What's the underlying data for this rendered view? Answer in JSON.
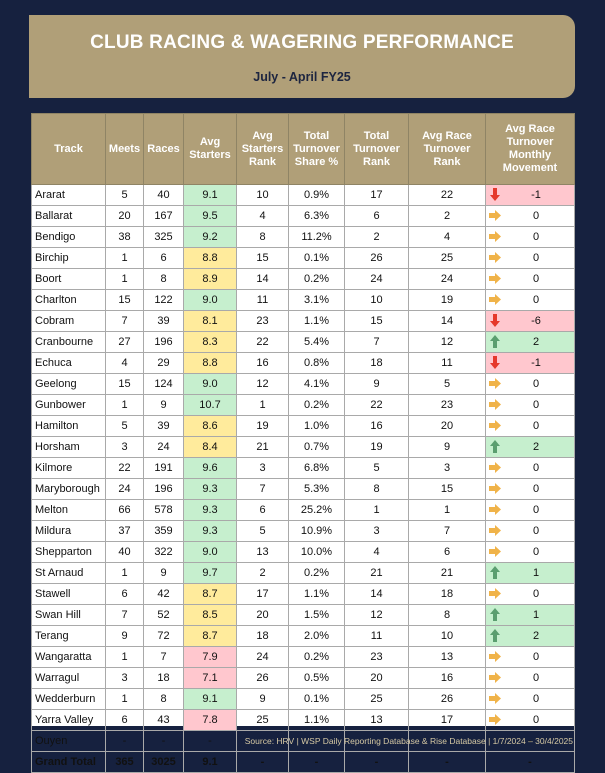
{
  "banner": {
    "title": "CLUB RACING & WAGERING PERFORMANCE",
    "subtitle": "July - April FY25"
  },
  "colors": {
    "background": "#16213f",
    "header": "#b09f78",
    "good": "#c6efce",
    "medium": "#ffeb9c",
    "poor": "#ffc7ce",
    "arrow_up": "#5a9e6f",
    "arrow_down": "#e5382b",
    "arrow_right": "#f0b349"
  },
  "table": {
    "headers": [
      "Track",
      "Meets",
      "Races",
      "Avg Starters",
      "Avg Starters Rank",
      "Total Turnover Share %",
      "Total Turnover Rank",
      "Avg Race Turnover Rank",
      "Avg Race Turnover Monthly Movement"
    ],
    "rows": [
      {
        "track": "Ararat",
        "meets": "5",
        "races": "40",
        "avg": "9.1",
        "avg_c": "g",
        "srank": "10",
        "share": "0.9%",
        "trank": "17",
        "rrank": "22",
        "dir": "down",
        "mov": "-1"
      },
      {
        "track": "Ballarat",
        "meets": "20",
        "races": "167",
        "avg": "9.5",
        "avg_c": "g",
        "srank": "4",
        "share": "6.3%",
        "trank": "6",
        "rrank": "2",
        "dir": "right",
        "mov": "0"
      },
      {
        "track": "Bendigo",
        "meets": "38",
        "races": "325",
        "avg": "9.2",
        "avg_c": "g",
        "srank": "8",
        "share": "11.2%",
        "trank": "2",
        "rrank": "4",
        "dir": "right",
        "mov": "0"
      },
      {
        "track": "Birchip",
        "meets": "1",
        "races": "6",
        "avg": "8.8",
        "avg_c": "y",
        "srank": "15",
        "share": "0.1%",
        "trank": "26",
        "rrank": "25",
        "dir": "right",
        "mov": "0"
      },
      {
        "track": "Boort",
        "meets": "1",
        "races": "8",
        "avg": "8.9",
        "avg_c": "y",
        "srank": "14",
        "share": "0.2%",
        "trank": "24",
        "rrank": "24",
        "dir": "right",
        "mov": "0"
      },
      {
        "track": "Charlton",
        "meets": "15",
        "races": "122",
        "avg": "9.0",
        "avg_c": "g",
        "srank": "11",
        "share": "3.1%",
        "trank": "10",
        "rrank": "19",
        "dir": "right",
        "mov": "0"
      },
      {
        "track": "Cobram",
        "meets": "7",
        "races": "39",
        "avg": "8.1",
        "avg_c": "y",
        "srank": "23",
        "share": "1.1%",
        "trank": "15",
        "rrank": "14",
        "dir": "down",
        "mov": "-6"
      },
      {
        "track": "Cranbourne",
        "meets": "27",
        "races": "196",
        "avg": "8.3",
        "avg_c": "y",
        "srank": "22",
        "share": "5.4%",
        "trank": "7",
        "rrank": "12",
        "dir": "up",
        "mov": "2"
      },
      {
        "track": "Echuca",
        "meets": "4",
        "races": "29",
        "avg": "8.8",
        "avg_c": "y",
        "srank": "16",
        "share": "0.8%",
        "trank": "18",
        "rrank": "11",
        "dir": "down",
        "mov": "-1"
      },
      {
        "track": "Geelong",
        "meets": "15",
        "races": "124",
        "avg": "9.0",
        "avg_c": "g",
        "srank": "12",
        "share": "4.1%",
        "trank": "9",
        "rrank": "5",
        "dir": "right",
        "mov": "0"
      },
      {
        "track": "Gunbower",
        "meets": "1",
        "races": "9",
        "avg": "10.7",
        "avg_c": "g",
        "srank": "1",
        "share": "0.2%",
        "trank": "22",
        "rrank": "23",
        "dir": "right",
        "mov": "0"
      },
      {
        "track": "Hamilton",
        "meets": "5",
        "races": "39",
        "avg": "8.6",
        "avg_c": "y",
        "srank": "19",
        "share": "1.0%",
        "trank": "16",
        "rrank": "20",
        "dir": "right",
        "mov": "0"
      },
      {
        "track": "Horsham",
        "meets": "3",
        "races": "24",
        "avg": "8.4",
        "avg_c": "y",
        "srank": "21",
        "share": "0.7%",
        "trank": "19",
        "rrank": "9",
        "dir": "up",
        "mov": "2"
      },
      {
        "track": "Kilmore",
        "meets": "22",
        "races": "191",
        "avg": "9.6",
        "avg_c": "g",
        "srank": "3",
        "share": "6.8%",
        "trank": "5",
        "rrank": "3",
        "dir": "right",
        "mov": "0"
      },
      {
        "track": "Maryborough",
        "meets": "24",
        "races": "196",
        "avg": "9.3",
        "avg_c": "g",
        "srank": "7",
        "share": "5.3%",
        "trank": "8",
        "rrank": "15",
        "dir": "right",
        "mov": "0"
      },
      {
        "track": "Melton",
        "meets": "66",
        "races": "578",
        "avg": "9.3",
        "avg_c": "g",
        "srank": "6",
        "share": "25.2%",
        "trank": "1",
        "rrank": "1",
        "dir": "right",
        "mov": "0"
      },
      {
        "track": "Mildura",
        "meets": "37",
        "races": "359",
        "avg": "9.3",
        "avg_c": "g",
        "srank": "5",
        "share": "10.9%",
        "trank": "3",
        "rrank": "7",
        "dir": "right",
        "mov": "0"
      },
      {
        "track": "Shepparton",
        "meets": "40",
        "races": "322",
        "avg": "9.0",
        "avg_c": "g",
        "srank": "13",
        "share": "10.0%",
        "trank": "4",
        "rrank": "6",
        "dir": "right",
        "mov": "0"
      },
      {
        "track": "St Arnaud",
        "meets": "1",
        "races": "9",
        "avg": "9.7",
        "avg_c": "g",
        "srank": "2",
        "share": "0.2%",
        "trank": "21",
        "rrank": "21",
        "dir": "up",
        "mov": "1"
      },
      {
        "track": "Stawell",
        "meets": "6",
        "races": "42",
        "avg": "8.7",
        "avg_c": "y",
        "srank": "17",
        "share": "1.1%",
        "trank": "14",
        "rrank": "18",
        "dir": "right",
        "mov": "0"
      },
      {
        "track": "Swan Hill",
        "meets": "7",
        "races": "52",
        "avg": "8.5",
        "avg_c": "y",
        "srank": "20",
        "share": "1.5%",
        "trank": "12",
        "rrank": "8",
        "dir": "up",
        "mov": "1"
      },
      {
        "track": "Terang",
        "meets": "9",
        "races": "72",
        "avg": "8.7",
        "avg_c": "y",
        "srank": "18",
        "share": "2.0%",
        "trank": "11",
        "rrank": "10",
        "dir": "up",
        "mov": "2"
      },
      {
        "track": "Wangaratta",
        "meets": "1",
        "races": "7",
        "avg": "7.9",
        "avg_c": "r",
        "srank": "24",
        "share": "0.2%",
        "trank": "23",
        "rrank": "13",
        "dir": "right",
        "mov": "0"
      },
      {
        "track": "Warragul",
        "meets": "3",
        "races": "18",
        "avg": "7.1",
        "avg_c": "r",
        "srank": "26",
        "share": "0.5%",
        "trank": "20",
        "rrank": "16",
        "dir": "right",
        "mov": "0"
      },
      {
        "track": "Wedderburn",
        "meets": "1",
        "races": "8",
        "avg": "9.1",
        "avg_c": "g",
        "srank": "9",
        "share": "0.1%",
        "trank": "25",
        "rrank": "26",
        "dir": "right",
        "mov": "0"
      },
      {
        "track": "Yarra Valley",
        "meets": "6",
        "races": "43",
        "avg": "7.8",
        "avg_c": "r",
        "srank": "25",
        "share": "1.1%",
        "trank": "13",
        "rrank": "17",
        "dir": "right",
        "mov": "0"
      },
      {
        "track": "Ouyen",
        "meets": "-",
        "races": "-",
        "avg": "-",
        "avg_c": "",
        "srank": "-",
        "share": "-",
        "trank": "-",
        "rrank": "-",
        "dir": "",
        "mov": "-"
      }
    ],
    "total": {
      "track": "Grand Total",
      "meets": "365",
      "races": "3025",
      "avg": "9.1",
      "srank": "-",
      "share": "-",
      "trank": "-",
      "rrank": "-",
      "mov": "-"
    }
  },
  "footer": {
    "source": "Source: HRV | WSP Daily Reporting Database & Rise Database | 1/7/2024 – 30/4/2025"
  }
}
